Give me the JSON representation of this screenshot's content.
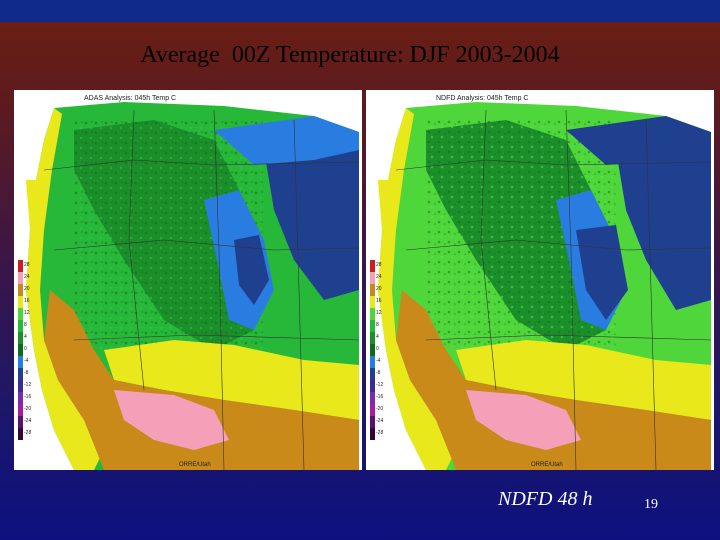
{
  "title": "Average  00Z Temperature: DJF 2003-2004",
  "colors": {
    "ocean": "#ffffff",
    "very_cold": "#1f3f8f",
    "cold": "#2a7de0",
    "cool": "#1a8f2a",
    "mild": "#27b83a",
    "warm": "#4fd63a",
    "warmer": "#e8e81a",
    "hot": "#c98a1a",
    "hottest": "#f4a0b8"
  },
  "maps": [
    {
      "id": "left",
      "header": "ADAS Analysis: 045h Temp C",
      "credit": "ORRE/Utah",
      "legend_ticks": [
        "28",
        "24",
        "20",
        "16",
        "12",
        "8",
        "4",
        "0",
        "-4",
        "-8",
        "-12",
        "-16",
        "-20",
        "-24",
        "-28"
      ]
    },
    {
      "id": "right",
      "header": "NDFD Analysis: 045h Temp C",
      "credit": "ORRE/Utah",
      "legend_ticks": [
        "28",
        "24",
        "20",
        "16",
        "12",
        "8",
        "4",
        "0",
        "-4",
        "-8",
        "-12",
        "-16",
        "-20",
        "-24",
        "-28"
      ]
    }
  ],
  "footer": {
    "label": "NDFD 48 h",
    "page_number": "19"
  }
}
